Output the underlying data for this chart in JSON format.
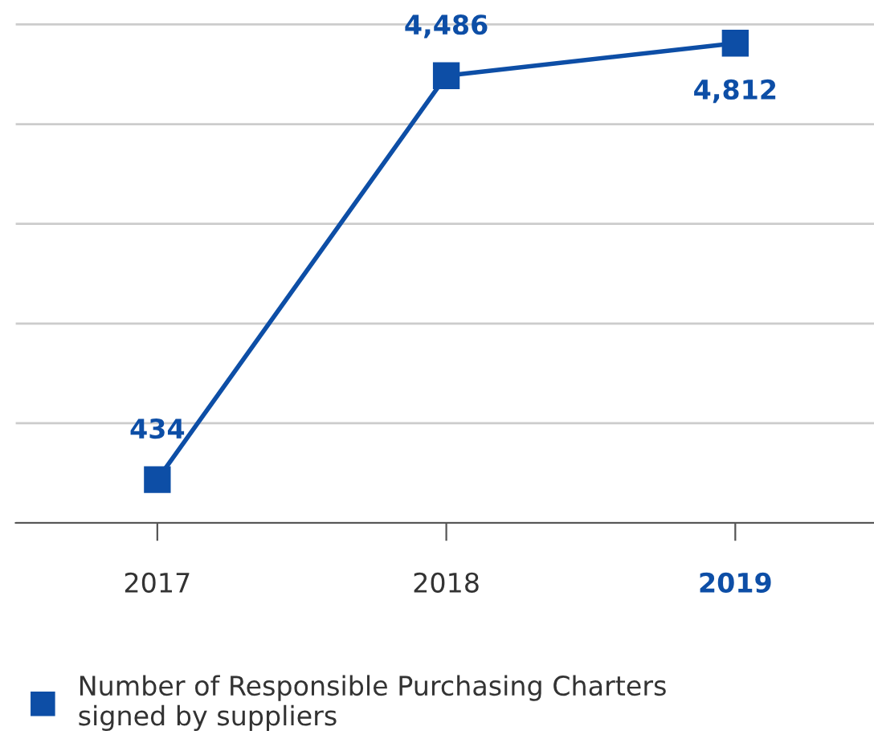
{
  "chart_data": {
    "type": "line",
    "categories": [
      "2017",
      "2018",
      "2019"
    ],
    "series": [
      {
        "name": "Number of Responsible Purchasing Charters\nsigned by suppliers",
        "color": "#0d4ea6",
        "values": [
          434,
          4486,
          4812
        ],
        "value_labels": [
          "434",
          "4,486",
          "4,812"
        ]
      }
    ],
    "tick_labels": "x",
    "grid": "y",
    "legend": "bottom",
    "marker": "square",
    "line_style": "solid"
  }
}
